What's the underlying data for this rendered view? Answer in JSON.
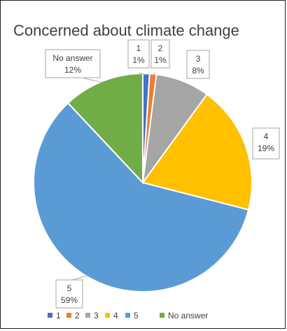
{
  "chart_data": {
    "type": "pie",
    "title": "Concerned  about  climate change",
    "slices": [
      {
        "label": "1",
        "value": 1,
        "display": "1%",
        "color": "#4472C4"
      },
      {
        "label": "2",
        "value": 1,
        "display": "1%",
        "color": "#ED7D31"
      },
      {
        "label": "3",
        "value": 8,
        "display": "8%",
        "color": "#A5A5A5"
      },
      {
        "label": "4",
        "value": 19,
        "display": "19%",
        "color": "#FFC000"
      },
      {
        "label": "5",
        "value": 59,
        "display": "59%",
        "color": "#5B9BD5"
      },
      {
        "label": "No answer",
        "value": 12,
        "display": "12%",
        "color": "#70AD47"
      }
    ],
    "legend_position": "bottom"
  }
}
